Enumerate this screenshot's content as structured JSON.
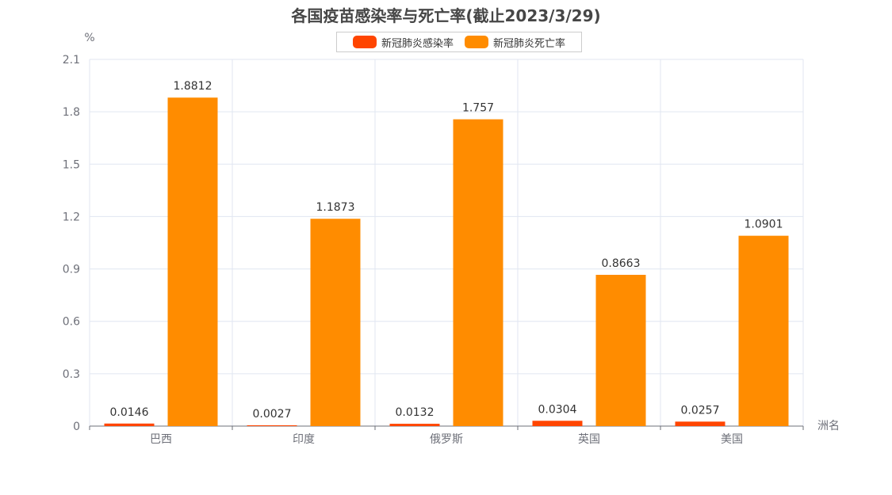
{
  "chart_data": {
    "type": "bar",
    "title": "各国疫苗感染率与死亡率(截止2023/3/29)",
    "xlabel": "洲名",
    "ylabel": "%",
    "ylim": [
      0,
      2.1
    ],
    "yticks": [
      "0",
      "0.3",
      "0.6",
      "0.9",
      "1.2",
      "1.5",
      "1.8",
      "2.1"
    ],
    "categories": [
      "巴西",
      "印度",
      "俄罗斯",
      "英国",
      "美国"
    ],
    "series": [
      {
        "name": "新冠肺炎感染率",
        "color": "#ff4500",
        "values": [
          0.0146,
          0.0027,
          0.0132,
          0.0304,
          0.0257
        ],
        "labels": [
          "0.0146",
          "0.0027",
          "0.0132",
          "0.0304",
          "0.0257"
        ]
      },
      {
        "name": "新冠肺炎死亡率",
        "color": "#ff8c00",
        "values": [
          1.8812,
          1.1873,
          1.757,
          0.8663,
          1.0901
        ],
        "labels": [
          "1.8812",
          "1.1873",
          "1.757",
          "0.8663",
          "1.0901"
        ]
      }
    ],
    "grid": true,
    "legend_position": "top"
  }
}
